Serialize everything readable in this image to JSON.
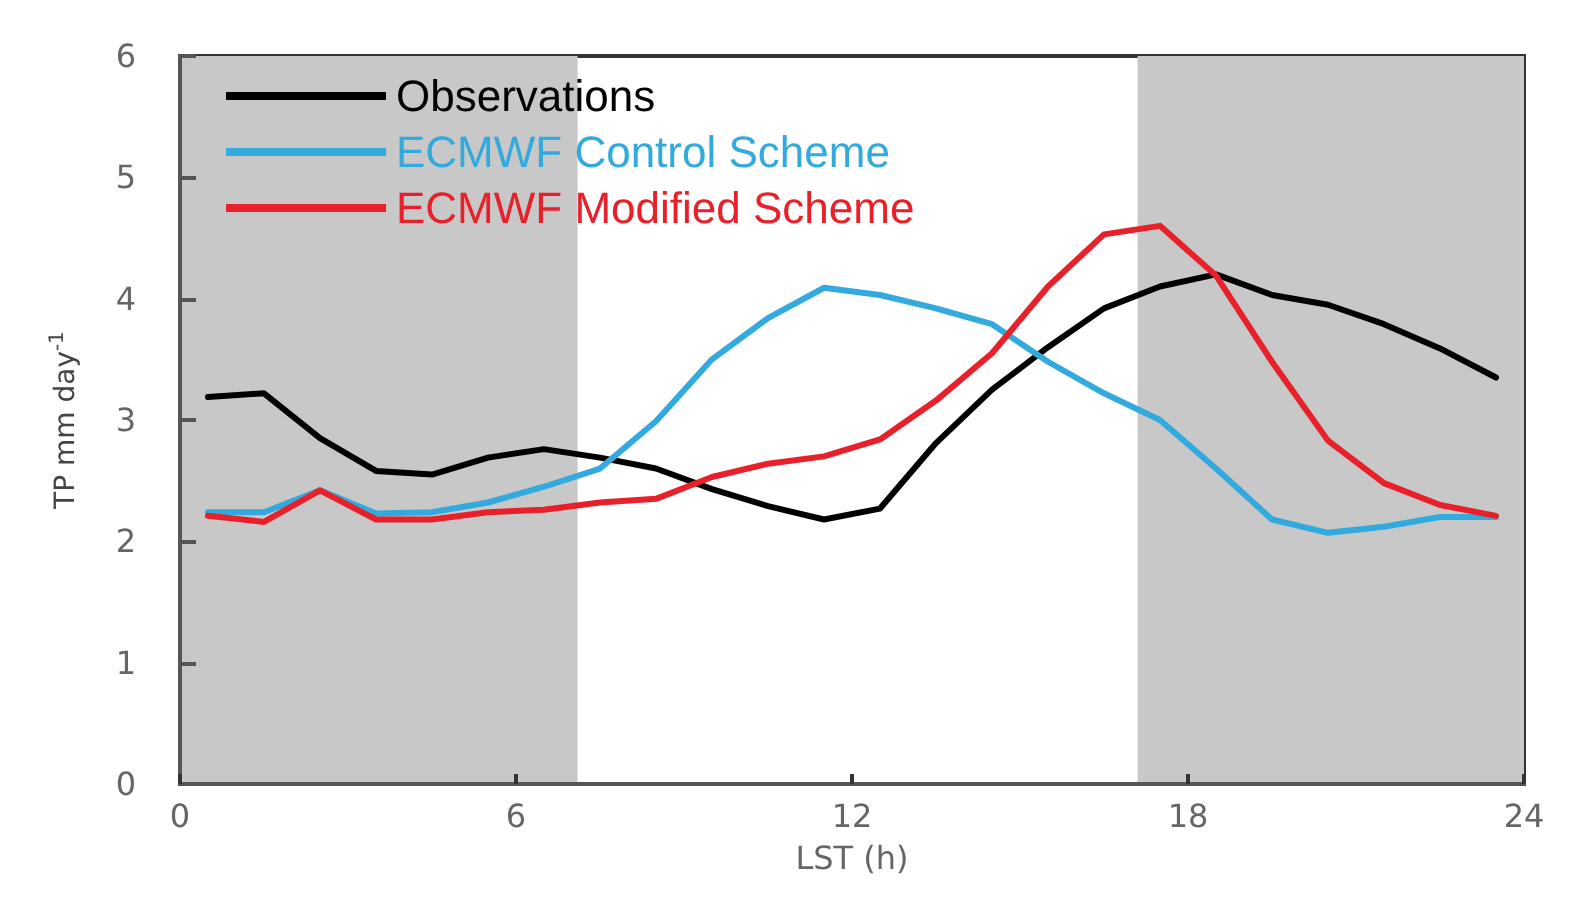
{
  "chart_data": {
    "type": "line",
    "xlabel": "LST (h)",
    "ylabel": "TP mm day$^{-1}$",
    "x": [
      0.5,
      1.5,
      2.5,
      3.5,
      4.5,
      5.5,
      6.5,
      7.5,
      8.5,
      9.5,
      10.5,
      11.5,
      12.5,
      13.5,
      14.5,
      15.5,
      16.5,
      17.5,
      18.5,
      19.5,
      20.5,
      21.5,
      22.5,
      23.5
    ],
    "series": [
      {
        "name": "Observations",
        "color": "#000000",
        "values": [
          3.19,
          3.22,
          2.85,
          2.58,
          2.55,
          2.69,
          2.76,
          2.69,
          2.6,
          2.43,
          2.29,
          2.18,
          2.27,
          2.81,
          3.25,
          3.6,
          3.92,
          4.1,
          4.2,
          4.03,
          3.95,
          3.79,
          3.59,
          3.35
        ]
      },
      {
        "name": "ECMWF Control Scheme",
        "color": "#33aadd",
        "values": [
          2.24,
          2.24,
          2.42,
          2.23,
          2.24,
          2.32,
          2.45,
          2.6,
          2.99,
          3.5,
          3.84,
          4.09,
          4.03,
          3.92,
          3.79,
          3.48,
          3.22,
          3.0,
          2.6,
          2.18,
          2.07,
          2.12,
          2.2,
          2.2
        ]
      },
      {
        "name": "ECMWF Modified Scheme",
        "color": "#e8202a",
        "values": [
          2.21,
          2.16,
          2.42,
          2.18,
          2.18,
          2.24,
          2.26,
          2.32,
          2.35,
          2.53,
          2.64,
          2.7,
          2.84,
          3.16,
          3.55,
          4.1,
          4.53,
          4.6,
          4.19,
          3.48,
          2.83,
          2.48,
          2.3,
          2.21
        ]
      }
    ],
    "xlim": [
      0,
      24
    ],
    "xticks": [
      0,
      6,
      12,
      18,
      24
    ],
    "ylim": [
      0,
      6
    ],
    "yticks": [
      0,
      1,
      2,
      3,
      4,
      5,
      6
    ],
    "bands": [
      {
        "axis": "x",
        "from": 0,
        "to": 7.1,
        "color": "#c8c8c8"
      },
      {
        "axis": "x",
        "from": 17.1,
        "to": 24,
        "color": "#c8c8c8"
      }
    ],
    "legend": "top left",
    "grid": false,
    "marker": "none",
    "line_style": "solid"
  }
}
